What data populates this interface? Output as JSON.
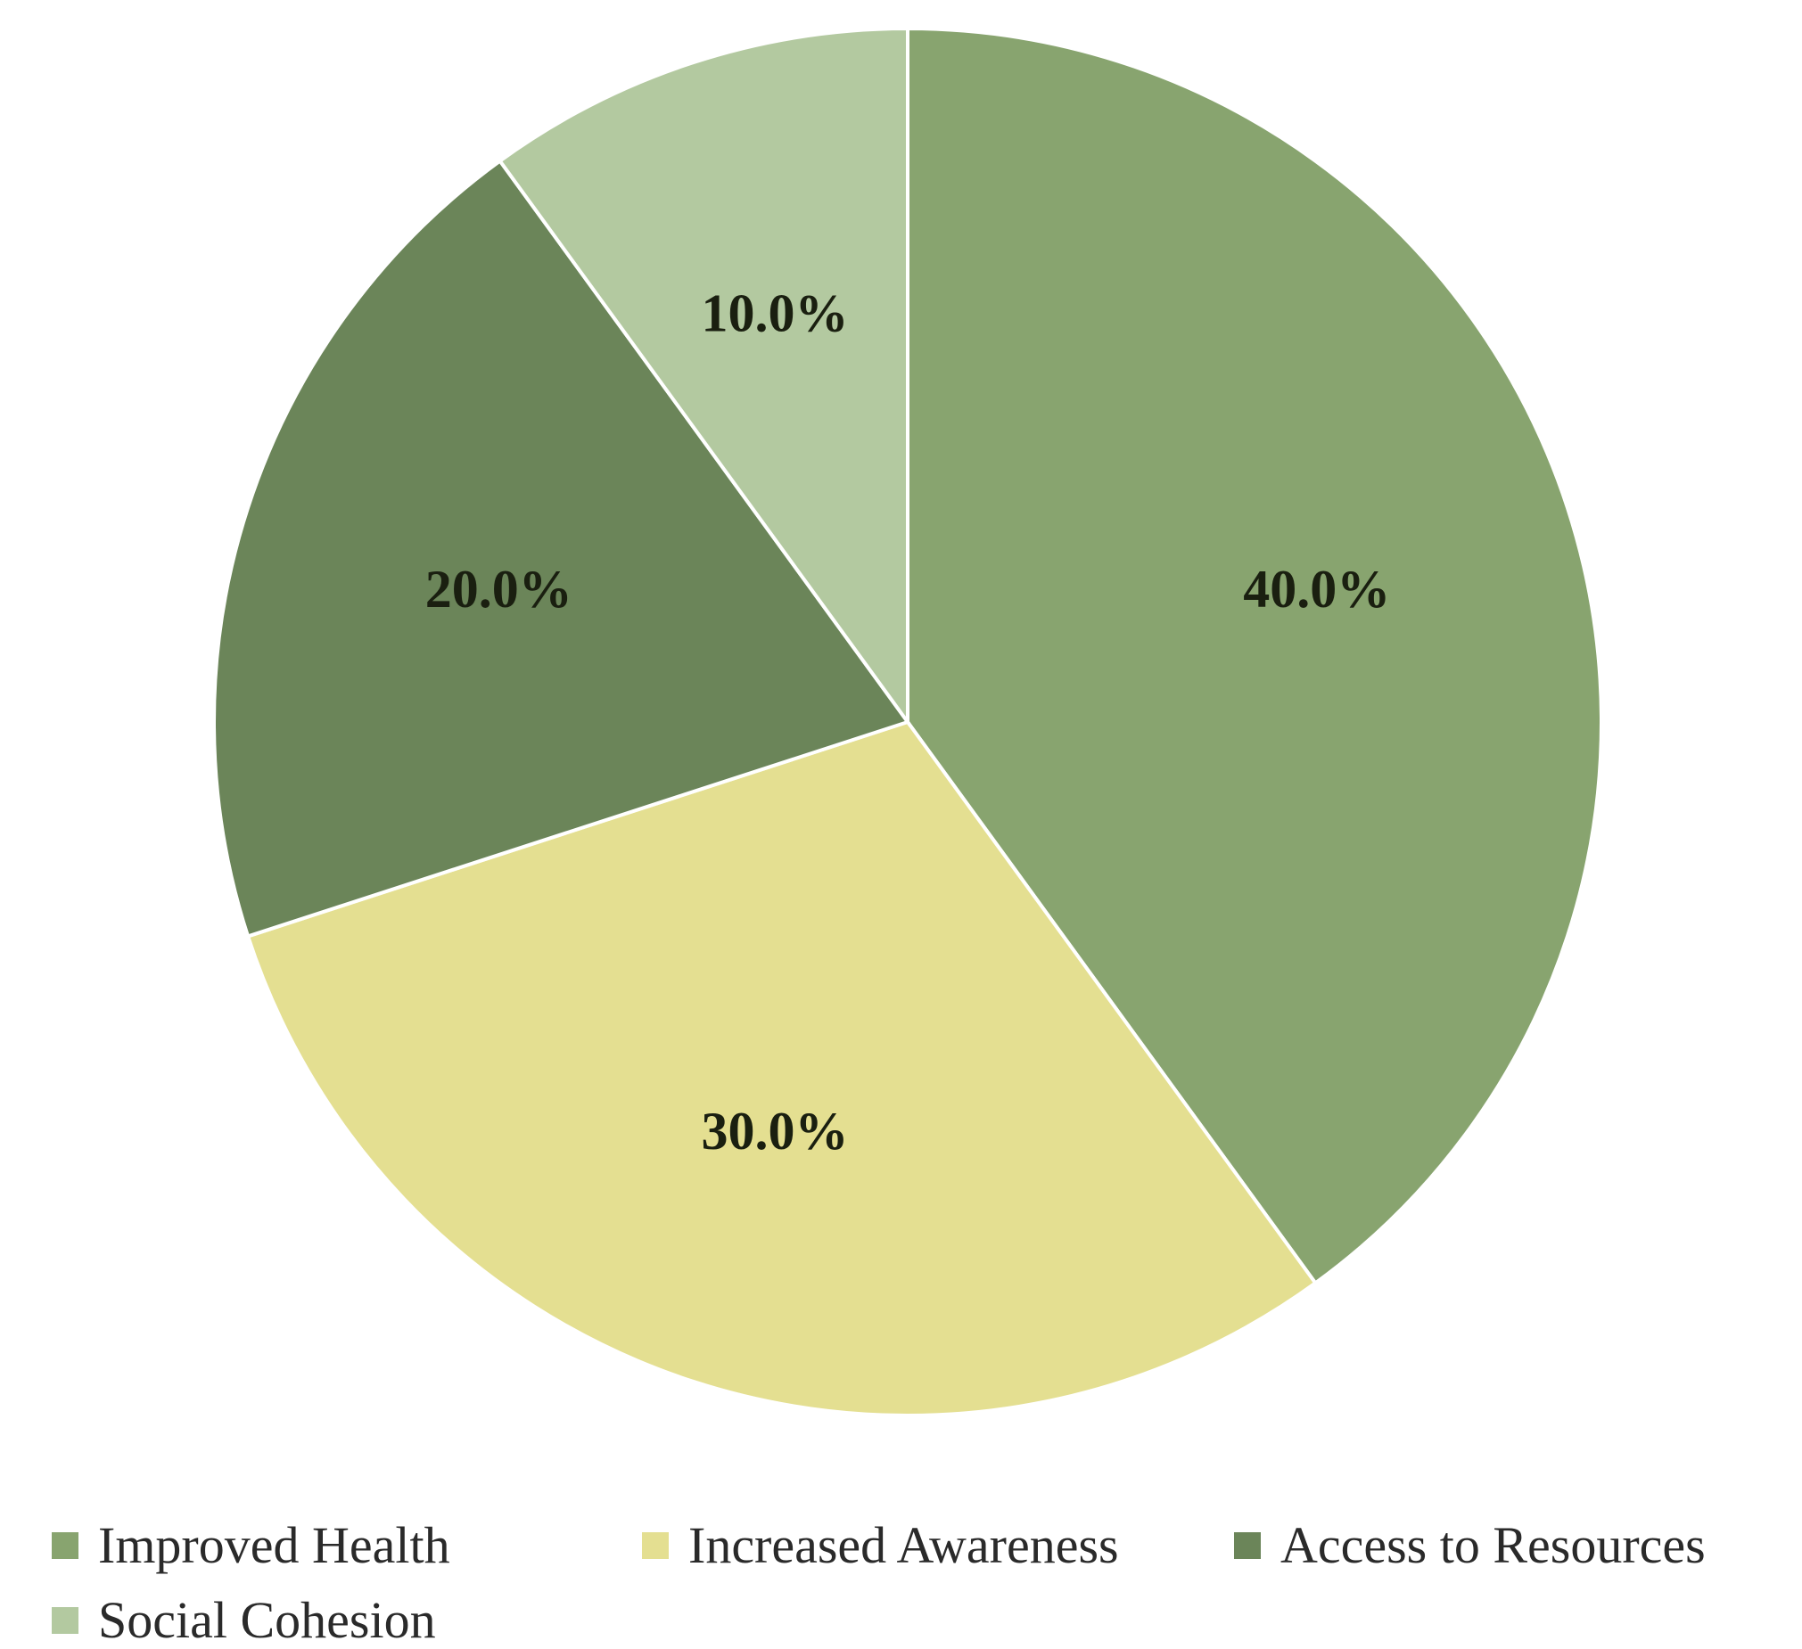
{
  "chart_data": {
    "type": "pie",
    "title": "",
    "start_angle_deg": 0,
    "direction": "clockwise",
    "legend_position": "bottom",
    "slices": [
      {
        "label": "Improved Health",
        "value": 40.0,
        "value_label": "40.0%",
        "color": "#88a46f"
      },
      {
        "label": "Increased Awareness",
        "value": 30.0,
        "value_label": "30.0%",
        "color": "#e4df91"
      },
      {
        "label": "Access to Resources",
        "value": 20.0,
        "value_label": "20.0%",
        "color": "#6b8559"
      },
      {
        "label": "Social Cohesion",
        "value": 10.0,
        "value_label": "10.0%",
        "color": "#b3c9a0"
      }
    ]
  }
}
